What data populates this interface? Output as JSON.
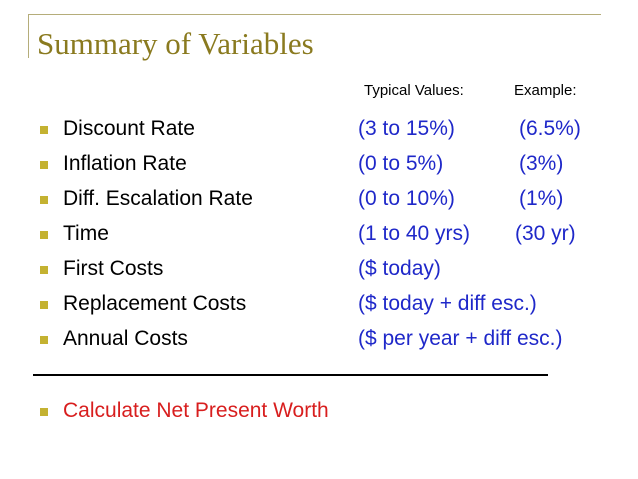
{
  "slide": {
    "title": "Summary of Variables",
    "column_headers": {
      "typical": "Typical Values:",
      "example": "Example:"
    },
    "rows": [
      {
        "label": "Discount Rate",
        "typical": "(3 to 15%)",
        "example": "(6.5%)"
      },
      {
        "label": "Inflation Rate",
        "typical": "(0 to 5%)",
        "example": "(3%)"
      },
      {
        "label": "Diff. Escalation Rate",
        "typical": "(0 to 10%)",
        "example": "(1%)"
      },
      {
        "label": "Time",
        "typical": "(1 to 40 yrs)",
        "example": "(30 yr)"
      },
      {
        "label": "First Costs",
        "typical": "($ today)",
        "example": ""
      },
      {
        "label": "Replacement Costs",
        "typical": "($ today + diff esc.)",
        "example": ""
      },
      {
        "label": "Annual Costs",
        "typical": "($ per year + diff esc.)",
        "example": ""
      }
    ],
    "conclusion": "Calculate Net Present Worth"
  },
  "colors": {
    "title": "#8a7a1f",
    "bullet": "#c4b232",
    "value_text": "#1f28c9",
    "conclusion_text": "#d81e1e"
  }
}
